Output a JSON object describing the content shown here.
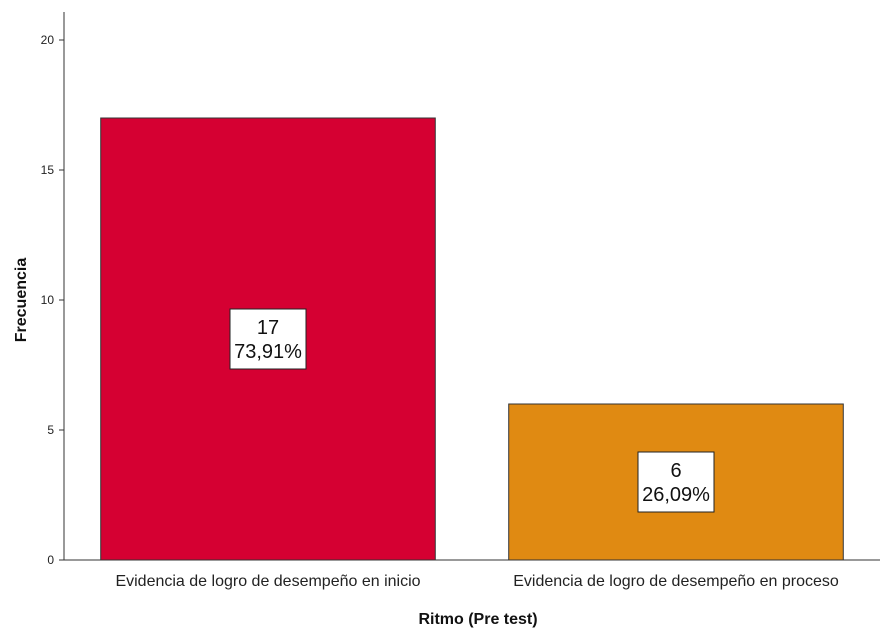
{
  "chart_data": {
    "type": "bar",
    "title": "",
    "xlabel": "Ritmo (Pre test)",
    "ylabel": "Frecuencia",
    "ylim": [
      0,
      20
    ],
    "yticks": [
      "0",
      "5",
      "10",
      "15",
      "20"
    ],
    "grid": false,
    "categories": [
      "Evidencia de logro de desempeño en inicio",
      "Evidencia de logro de desempeño en proceso"
    ],
    "values": [
      17,
      6
    ],
    "data_labels": [
      {
        "count": "17",
        "percent": "73,91%"
      },
      {
        "count": "6",
        "percent": "26,09%"
      }
    ],
    "colors": [
      "#d50032",
      "#e08a12"
    ],
    "edge_color": "#333333"
  }
}
